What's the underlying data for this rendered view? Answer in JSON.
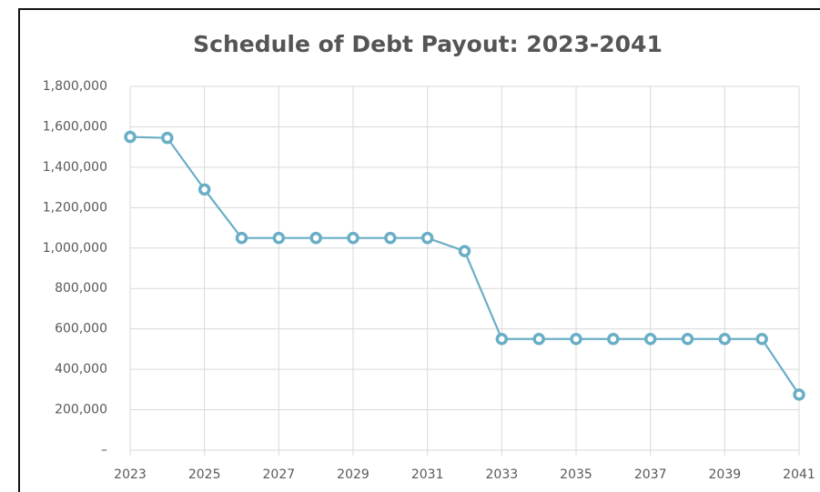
{
  "chart_data": {
    "type": "line",
    "title": "Schedule of Debt Payout: 2023-2041",
    "x": [
      2023,
      2024,
      2025,
      2026,
      2027,
      2028,
      2029,
      2030,
      2031,
      2032,
      2033,
      2034,
      2035,
      2036,
      2037,
      2038,
      2039,
      2040,
      2041
    ],
    "series": [
      {
        "name": "Debt Payout",
        "color": "#6aaec6",
        "values": [
          1550000,
          1545000,
          1290000,
          1050000,
          1050000,
          1050000,
          1050000,
          1050000,
          1050000,
          985000,
          550000,
          550000,
          550000,
          550000,
          550000,
          550000,
          550000,
          550000,
          275000
        ]
      }
    ],
    "xlim": [
      2023,
      2041
    ],
    "xticks": [
      2023,
      2025,
      2027,
      2029,
      2031,
      2033,
      2035,
      2037,
      2039,
      2041
    ],
    "ylim": [
      0,
      1800000
    ],
    "yticks": [
      {
        "value": 0,
        "label": "–"
      },
      {
        "value": 200000,
        "label": "200,000"
      },
      {
        "value": 400000,
        "label": "400,000"
      },
      {
        "value": 600000,
        "label": "600,000"
      },
      {
        "value": 800000,
        "label": "800,000"
      },
      {
        "value": 1000000,
        "label": "1,000,000"
      },
      {
        "value": 1200000,
        "label": "1,200,000"
      },
      {
        "value": 1400000,
        "label": "1,400,000"
      },
      {
        "value": 1600000,
        "label": "1,600,000"
      },
      {
        "value": 1800000,
        "label": "1,800,000"
      }
    ],
    "grid": true
  }
}
